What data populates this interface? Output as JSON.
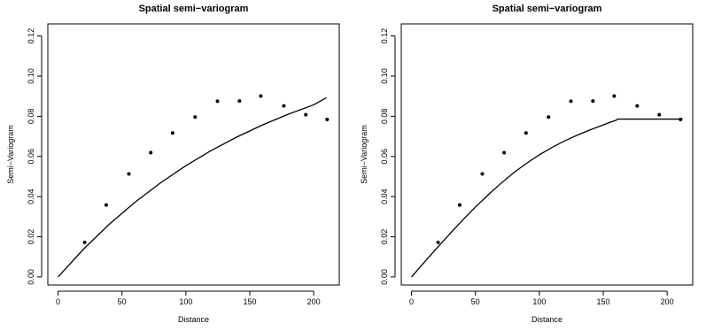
{
  "chart_data": [
    {
      "type": "scatter",
      "title": "Spatial semi−variogram",
      "xlabel": "Distance",
      "ylabel": "Semi−Variogram",
      "xlim": [
        -8,
        220
      ],
      "ylim": [
        -0.004,
        0.126
      ],
      "x_ticks": [
        0,
        50,
        100,
        150,
        200
      ],
      "x_tick_labels": [
        "0",
        "50",
        "100",
        "150",
        "200"
      ],
      "y_ticks": [
        0.0,
        0.02,
        0.04,
        0.06,
        0.08,
        0.1,
        0.12
      ],
      "y_tick_labels": [
        "0.00",
        "0.02",
        "0.04",
        "0.06",
        "0.08",
        "0.10",
        "0.12"
      ],
      "grid": false,
      "series": [
        {
          "kind": "points",
          "x": [
            20.8,
            37.7,
            55.4,
            72.5,
            89.6,
            107.2,
            124.7,
            141.9,
            158.6,
            176.6,
            193.8,
            210.5
          ],
          "y": [
            0.0172,
            0.0358,
            0.0513,
            0.0619,
            0.0717,
            0.0796,
            0.0875,
            0.0876,
            0.0901,
            0.0852,
            0.0808,
            0.0784
          ]
        },
        {
          "kind": "line",
          "x": [
            0,
            20,
            40,
            60,
            80,
            100,
            120,
            140,
            160,
            180,
            200,
            210
          ],
          "y": [
            0.0,
            0.0139,
            0.0262,
            0.0371,
            0.0468,
            0.0554,
            0.063,
            0.0697,
            0.0757,
            0.081,
            0.0857,
            0.0893
          ]
        }
      ]
    },
    {
      "type": "scatter",
      "title": "Spatial semi−variogram",
      "xlabel": "Distance",
      "ylabel": "Semi−Variogram",
      "xlim": [
        -8,
        220
      ],
      "ylim": [
        -0.004,
        0.126
      ],
      "x_ticks": [
        0,
        50,
        100,
        150,
        200
      ],
      "x_tick_labels": [
        "0",
        "50",
        "100",
        "150",
        "200"
      ],
      "y_ticks": [
        0.0,
        0.02,
        0.04,
        0.06,
        0.08,
        0.1,
        0.12
      ],
      "y_tick_labels": [
        "0.00",
        "0.02",
        "0.04",
        "0.06",
        "0.08",
        "0.10",
        "0.12"
      ],
      "grid": false,
      "series": [
        {
          "kind": "points",
          "x": [
            20.8,
            37.7,
            55.4,
            72.5,
            89.6,
            107.2,
            124.7,
            141.9,
            158.6,
            176.6,
            193.8,
            210.5
          ],
          "y": [
            0.0172,
            0.0358,
            0.0513,
            0.0619,
            0.0717,
            0.0796,
            0.0875,
            0.0876,
            0.0901,
            0.0852,
            0.0808,
            0.0784
          ]
        },
        {
          "kind": "line",
          "x": [
            0,
            10,
            20,
            30,
            40,
            50,
            60,
            70,
            80,
            90,
            100,
            110,
            120,
            130,
            140,
            150,
            155,
            160,
            161.5,
            170,
            180,
            190,
            200,
            212
          ],
          "y": [
            0.0,
            0.0073,
            0.0145,
            0.0215,
            0.0283,
            0.0348,
            0.0409,
            0.0466,
            0.0519,
            0.0566,
            0.0608,
            0.0645,
            0.0678,
            0.0707,
            0.0733,
            0.0757,
            0.0769,
            0.078,
            0.0786,
            0.0786,
            0.0786,
            0.0786,
            0.0786,
            0.0786
          ]
        }
      ]
    }
  ]
}
